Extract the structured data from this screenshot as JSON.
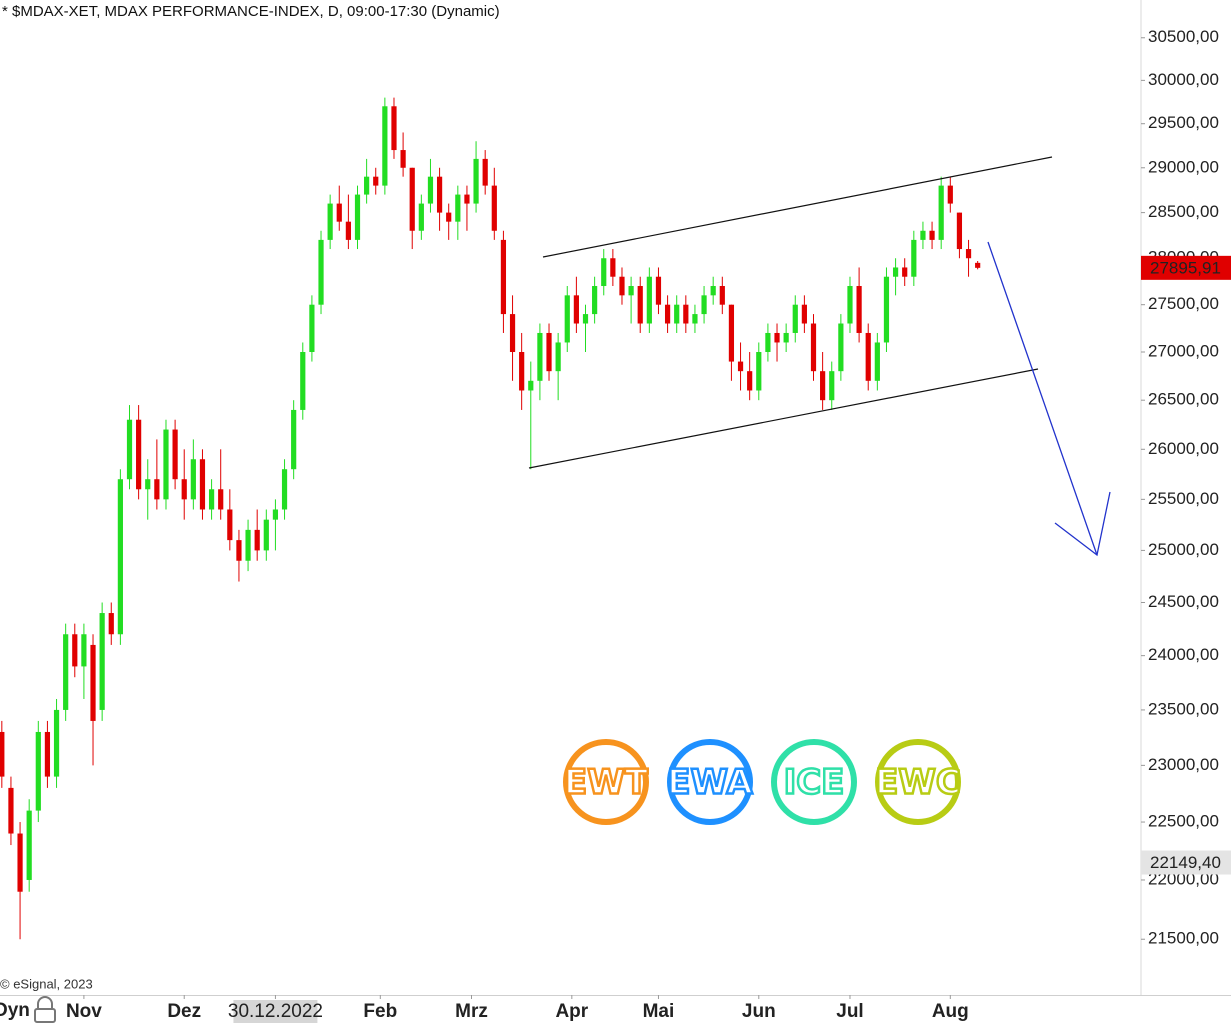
{
  "chart_data": {
    "type": "candlestick",
    "title": "* $MDAX-XET, MDAX PERFORMANCE-INDEX, D, 09:00-17:30 (Dynamic)",
    "credit": "© eSignal, 2023",
    "mode_label": "Dyn",
    "up_color": "#22dd22",
    "down_color": "#e00000",
    "log_scale": true,
    "ylim": [
      21040,
      30950
    ],
    "yticks": [
      {
        "value": 21500,
        "label": "21500,00"
      },
      {
        "value": 22000,
        "label": "22000,00"
      },
      {
        "value": 22500,
        "label": "22500,00"
      },
      {
        "value": 23000,
        "label": "23000,00"
      },
      {
        "value": 23500,
        "label": "23500,00"
      },
      {
        "value": 24000,
        "label": "24000,00"
      },
      {
        "value": 24500,
        "label": "24500,00"
      },
      {
        "value": 25000,
        "label": "25000,00"
      },
      {
        "value": 25500,
        "label": "25500,00"
      },
      {
        "value": 26000,
        "label": "26000,00"
      },
      {
        "value": 26500,
        "label": "26500,00"
      },
      {
        "value": 27000,
        "label": "27000,00"
      },
      {
        "value": 27500,
        "label": "27500,00"
      },
      {
        "value": 28000,
        "label": "28000,00"
      },
      {
        "value": 28500,
        "label": "28500,00"
      },
      {
        "value": 29000,
        "label": "29000,00"
      },
      {
        "value": 29500,
        "label": "29500,00"
      },
      {
        "value": 30000,
        "label": "30000,00"
      },
      {
        "value": 30500,
        "label": "30500,00"
      }
    ],
    "xlim": [
      -0.2,
      124.8
    ],
    "xticks": [
      {
        "value": 9,
        "label": "Nov"
      },
      {
        "value": 20,
        "label": "Dez"
      },
      {
        "value": 30,
        "label": "30.12.2022",
        "boxed": true
      },
      {
        "value": 41.5,
        "label": "Feb"
      },
      {
        "value": 51.5,
        "label": "Mrz"
      },
      {
        "value": 62.5,
        "label": "Apr"
      },
      {
        "value": 72,
        "label": "Mai"
      },
      {
        "value": 83,
        "label": "Jun"
      },
      {
        "value": 93,
        "label": "Jul"
      },
      {
        "value": 104,
        "label": "Aug"
      }
    ],
    "price_markers": [
      {
        "value": 27895.91,
        "label": "27895,91",
        "color": "#e00000",
        "text_color": "#ffffff"
      },
      {
        "value": 22149.4,
        "label": "22149,40",
        "color": "#e4e4e4",
        "text_color": "#111111"
      }
    ],
    "logos": [
      {
        "label": "EWT",
        "color": "#f7931e"
      },
      {
        "label": "EWA",
        "color": "#1e90ff"
      },
      {
        "label": "ICE",
        "color": "#2fe0a8"
      },
      {
        "label": "EWC",
        "color": "#b8cc14"
      }
    ],
    "open": [
      23300,
      22800,
      22400,
      22000,
      22600,
      23300,
      22900,
      23500,
      24200,
      23900,
      24100,
      23500,
      24400,
      24200,
      25700,
      26300,
      25600,
      25700,
      25500,
      26200,
      25700,
      25500,
      25900,
      25400,
      25600,
      25400,
      25100,
      24900,
      25200,
      25000,
      25300,
      25400,
      25800,
      26400,
      27000,
      27500,
      28200,
      28600,
      28400,
      28200,
      28700,
      28900,
      28800,
      29700,
      29200,
      29000,
      28300,
      28600,
      28900,
      28500,
      28400,
      28700,
      28600,
      29100,
      28800,
      28200,
      27400,
      27000,
      26600,
      26700,
      27200,
      26800,
      27100,
      27600,
      27300,
      27400,
      27700,
      28000,
      27800,
      27600,
      27700,
      27300,
      27800,
      27500,
      27300,
      27500,
      27300,
      27400,
      27600,
      27700,
      27500,
      26900,
      26800,
      26600,
      27000,
      27200,
      27100,
      27200,
      27500,
      27300,
      26800,
      26500,
      26800,
      27300,
      27700,
      27200,
      26700,
      27100,
      27800,
      27900,
      27800,
      28200,
      28300,
      28200,
      28800,
      28500,
      28100,
      27950
    ],
    "high": [
      23400,
      22900,
      22500,
      22700,
      23400,
      23400,
      23600,
      24300,
      24300,
      24300,
      24200,
      24500,
      24500,
      25800,
      26450,
      26450,
      25900,
      26100,
      26300,
      26300,
      26000,
      26100,
      26000,
      25700,
      26000,
      25600,
      25200,
      25300,
      25400,
      25400,
      25500,
      25900,
      26500,
      27100,
      27600,
      28300,
      28700,
      28800,
      28700,
      28800,
      29100,
      29000,
      29800,
      29800,
      29400,
      29000,
      28700,
      29100,
      29000,
      28600,
      28800,
      28800,
      29300,
      29200,
      29000,
      28300,
      27600,
      27200,
      26900,
      27300,
      27300,
      27200,
      27700,
      27800,
      27500,
      27800,
      28100,
      28100,
      27900,
      27800,
      27800,
      27900,
      27900,
      27600,
      27600,
      27600,
      27500,
      27700,
      27800,
      27800,
      27500,
      27100,
      27000,
      27100,
      27300,
      27300,
      27300,
      27600,
      27600,
      27400,
      27000,
      26900,
      27400,
      27800,
      27900,
      27300,
      27200,
      27900,
      28000,
      28000,
      28300,
      28400,
      28400,
      28900,
      28900,
      28500,
      28200,
      27970
    ],
    "low": [
      22800,
      22300,
      21500,
      21900,
      22500,
      22800,
      22800,
      23400,
      23800,
      23600,
      23000,
      23400,
      24100,
      24100,
      25600,
      25500,
      25300,
      25400,
      25400,
      25600,
      25300,
      25400,
      25300,
      25300,
      25300,
      25000,
      24700,
      24800,
      24900,
      24900,
      25000,
      25300,
      25700,
      26300,
      26900,
      27400,
      28100,
      28300,
      28100,
      28100,
      28600,
      28700,
      28700,
      29100,
      28900,
      28100,
      28200,
      28500,
      28300,
      28200,
      28200,
      28300,
      28500,
      28700,
      28200,
      27200,
      26700,
      26400,
      25800,
      26500,
      26700,
      26500,
      27000,
      27200,
      27000,
      27300,
      27600,
      27700,
      27500,
      27300,
      27200,
      27200,
      27400,
      27200,
      27200,
      27200,
      27200,
      27300,
      27500,
      27400,
      26700,
      26600,
      26500,
      26500,
      26900,
      26900,
      27000,
      27100,
      27200,
      26700,
      26400,
      26400,
      26700,
      27200,
      27100,
      26600,
      26600,
      27000,
      27600,
      27700,
      27700,
      28100,
      28100,
      28100,
      28500,
      28000,
      27800,
      27880
    ],
    "close": [
      22900,
      22400,
      21900,
      22600,
      23300,
      22900,
      23500,
      24200,
      23900,
      24200,
      23400,
      24400,
      24200,
      25700,
      26300,
      25600,
      25700,
      25500,
      26200,
      25700,
      25500,
      25900,
      25400,
      25600,
      25400,
      25100,
      24900,
      25200,
      25000,
      25300,
      25400,
      25800,
      26400,
      27000,
      27500,
      28200,
      28600,
      28400,
      28200,
      28700,
      28900,
      28800,
      29700,
      29200,
      29000,
      28300,
      28600,
      28900,
      28500,
      28400,
      28700,
      28600,
      29100,
      28800,
      28300,
      27400,
      27000,
      26600,
      26700,
      27200,
      26800,
      27100,
      27600,
      27300,
      27400,
      27700,
      28000,
      27800,
      27600,
      27700,
      27300,
      27800,
      27500,
      27300,
      27500,
      27300,
      27400,
      27600,
      27700,
      27500,
      26900,
      26800,
      26600,
      27000,
      27200,
      27100,
      27200,
      27500,
      27300,
      26800,
      26500,
      26800,
      27300,
      27700,
      27200,
      26700,
      27100,
      27800,
      27900,
      27800,
      28200,
      28300,
      28200,
      28800,
      28600,
      28100,
      28000,
      27896
    ]
  }
}
